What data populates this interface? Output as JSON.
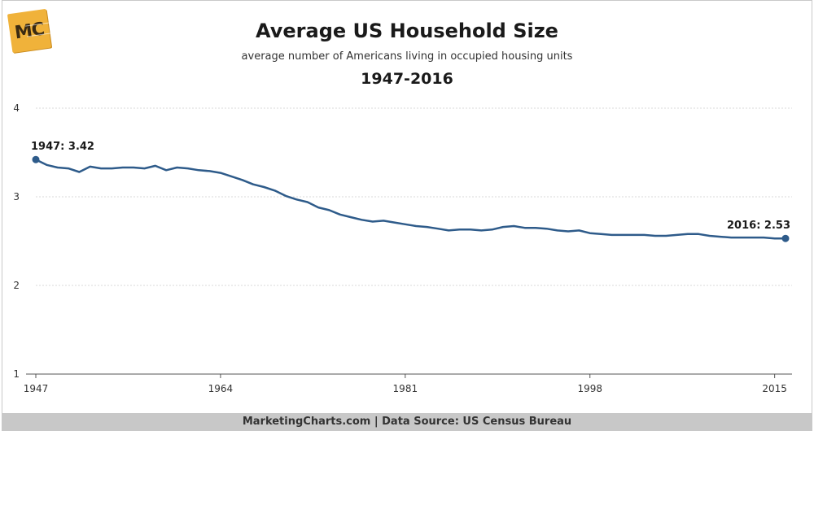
{
  "logo_text": "MC",
  "footer": "MarketingCharts.com | Data Source: US Census Bureau",
  "chart_data": {
    "type": "line",
    "title": "Average US Household Size",
    "subtitle": "average number of Americans living in occupied housing units",
    "period": "1947-2016",
    "xlabel": "",
    "ylabel": "",
    "xlim": [
      1947,
      2016
    ],
    "ylim": [
      1,
      4
    ],
    "yticks": [
      1,
      2,
      3,
      4
    ],
    "xticks": [
      1947,
      1964,
      1981,
      1998,
      2015
    ],
    "grid": true,
    "line_color": "#2e5b8a",
    "annotations": [
      {
        "label": "1947: 3.42",
        "x": 1947,
        "y": 3.42
      },
      {
        "label": "2016: 2.53",
        "x": 2016,
        "y": 2.53
      }
    ],
    "x": [
      1947,
      1948,
      1949,
      1950,
      1951,
      1952,
      1953,
      1954,
      1955,
      1956,
      1957,
      1958,
      1959,
      1960,
      1961,
      1962,
      1963,
      1964,
      1965,
      1966,
      1967,
      1968,
      1969,
      1970,
      1971,
      1972,
      1973,
      1974,
      1975,
      1976,
      1977,
      1978,
      1979,
      1980,
      1981,
      1982,
      1983,
      1984,
      1985,
      1986,
      1987,
      1988,
      1989,
      1990,
      1991,
      1992,
      1993,
      1994,
      1995,
      1996,
      1997,
      1998,
      1999,
      2000,
      2001,
      2002,
      2003,
      2004,
      2005,
      2006,
      2007,
      2008,
      2009,
      2010,
      2011,
      2012,
      2013,
      2014,
      2015,
      2016
    ],
    "y": [
      3.42,
      3.36,
      3.33,
      3.32,
      3.28,
      3.34,
      3.32,
      3.32,
      3.33,
      3.33,
      3.32,
      3.35,
      3.3,
      3.33,
      3.32,
      3.3,
      3.29,
      3.27,
      3.23,
      3.19,
      3.14,
      3.11,
      3.07,
      3.01,
      2.97,
      2.94,
      2.88,
      2.85,
      2.8,
      2.77,
      2.74,
      2.72,
      2.73,
      2.71,
      2.69,
      2.67,
      2.66,
      2.64,
      2.62,
      2.63,
      2.63,
      2.62,
      2.63,
      2.66,
      2.67,
      2.65,
      2.65,
      2.64,
      2.62,
      2.61,
      2.62,
      2.59,
      2.58,
      2.57,
      2.57,
      2.57,
      2.57,
      2.56,
      2.56,
      2.57,
      2.58,
      2.58,
      2.56,
      2.55,
      2.54,
      2.54,
      2.54,
      2.54,
      2.53,
      2.53
    ]
  }
}
